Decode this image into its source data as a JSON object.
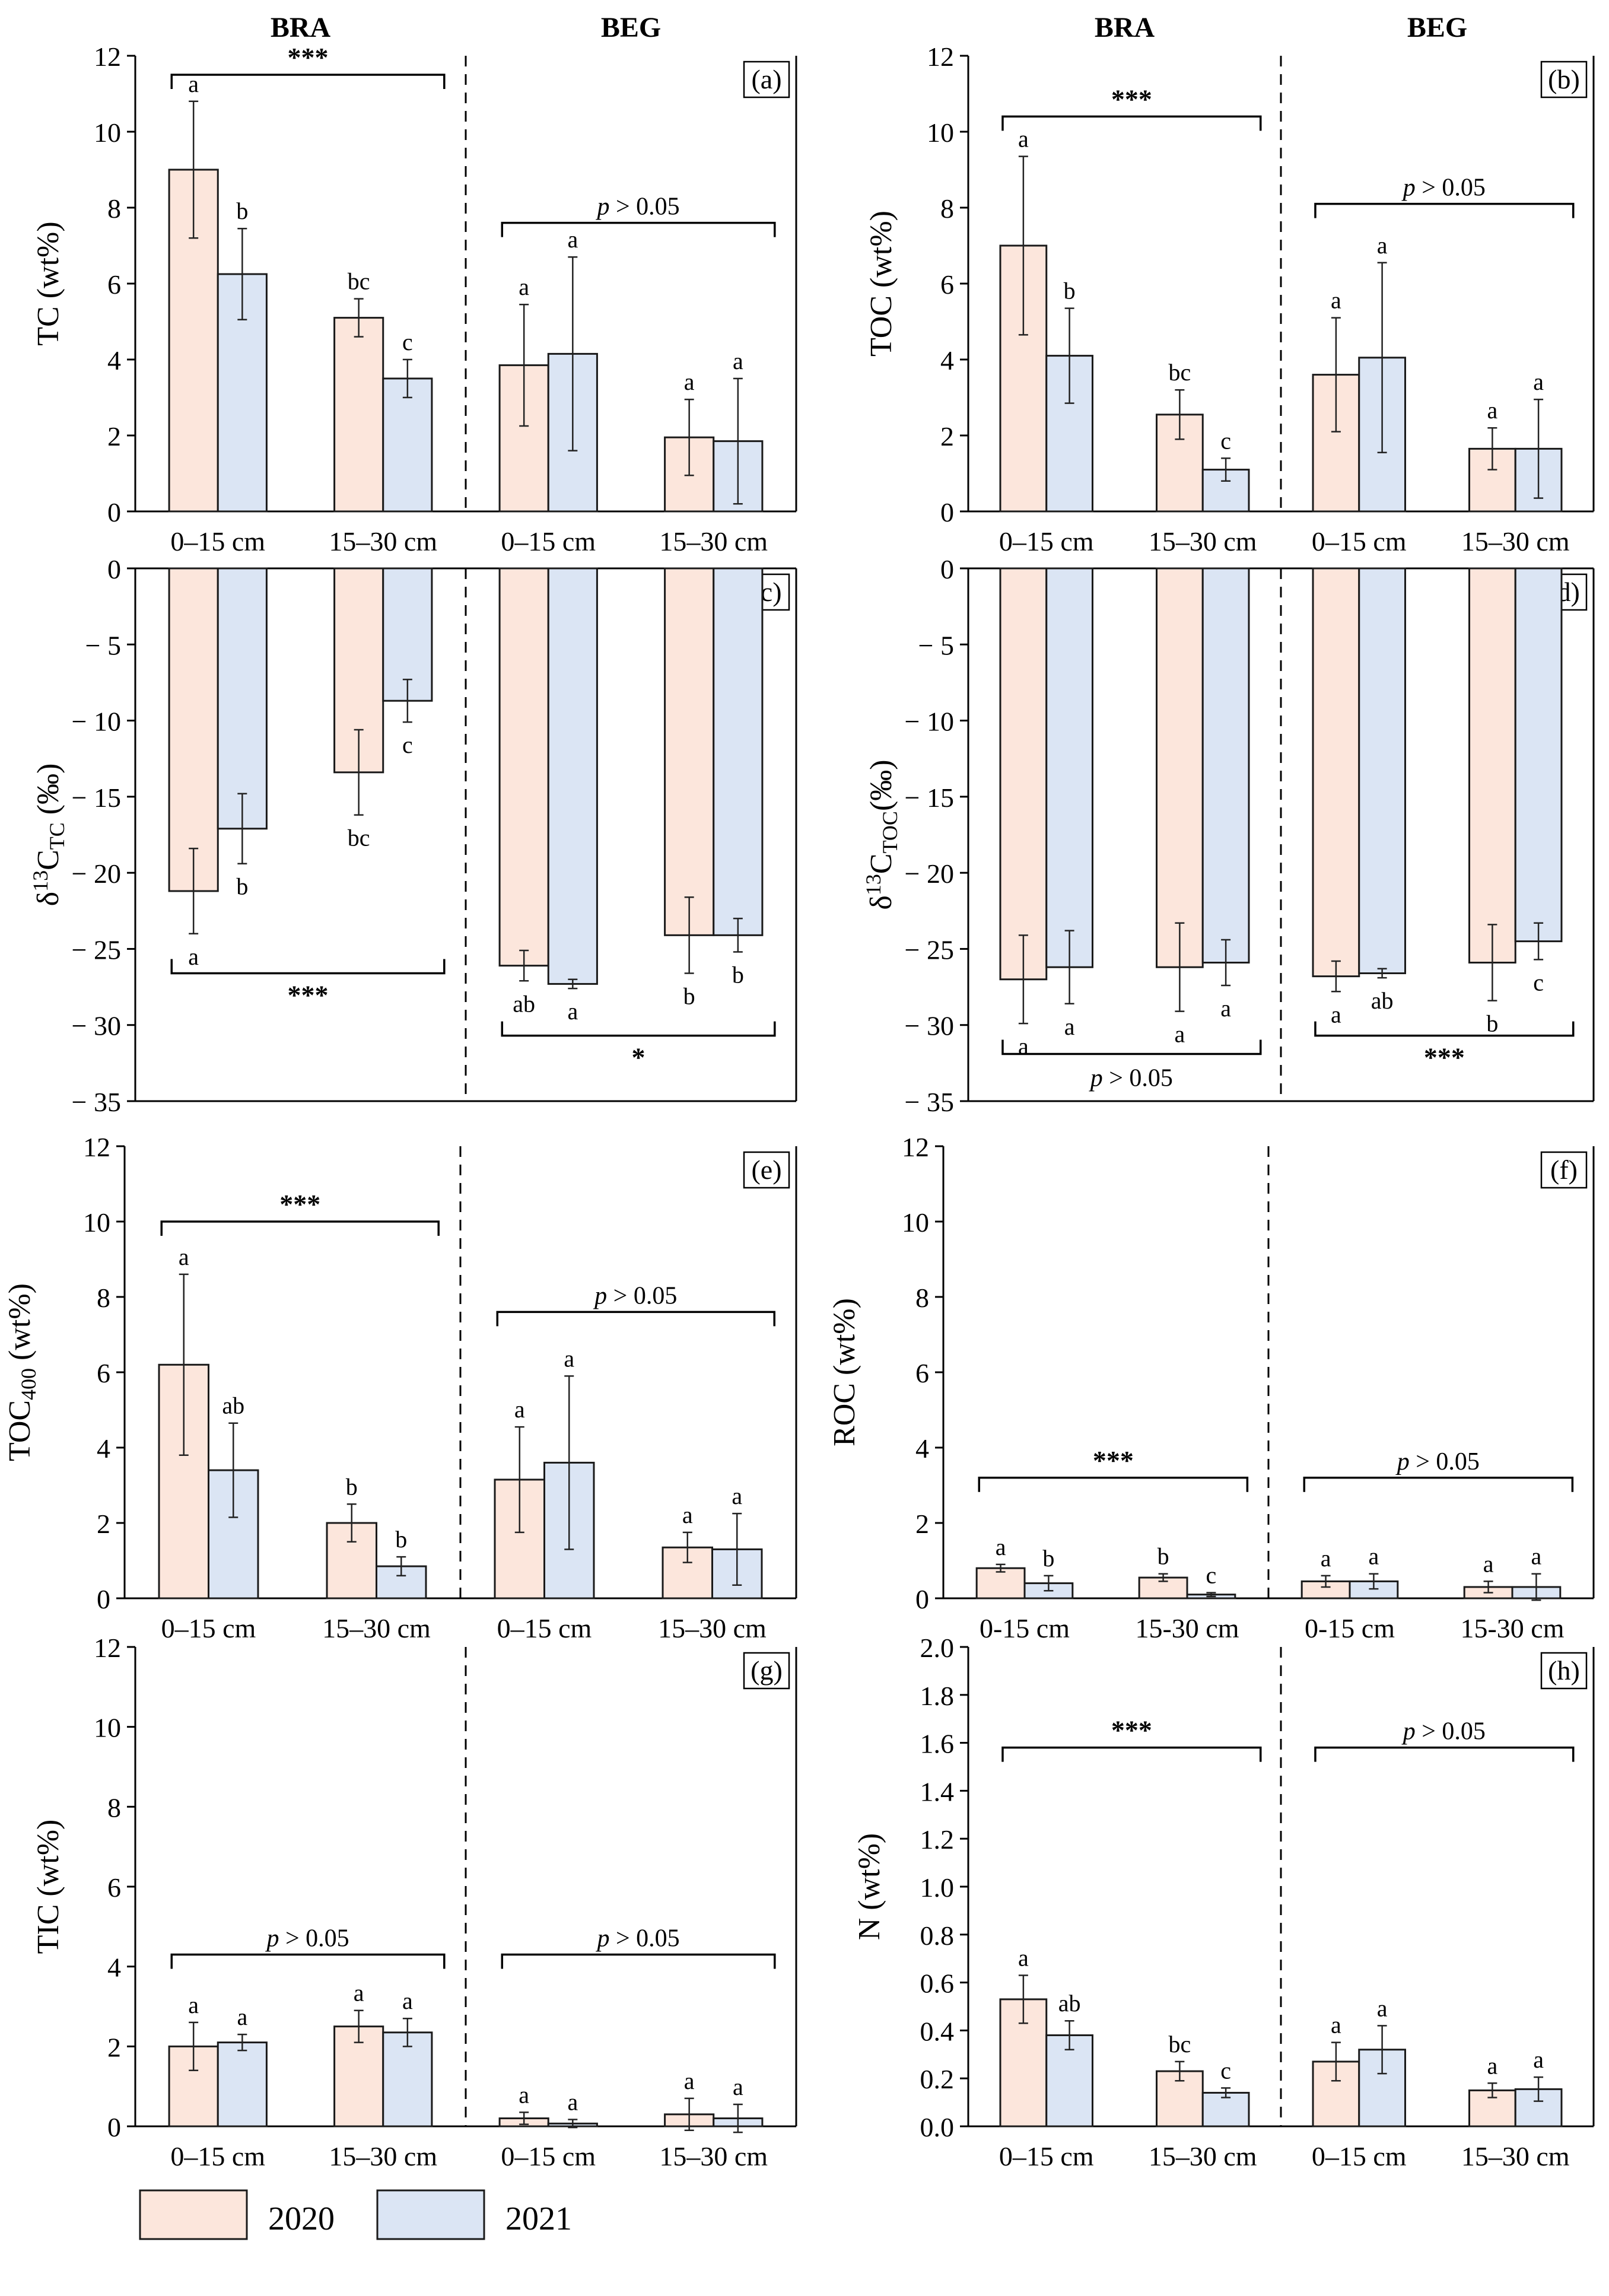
{
  "legend": {
    "entries": [
      {
        "label": "2020",
        "color": "#fce6dc"
      },
      {
        "label": "2021",
        "color": "#dbe5f4"
      }
    ]
  },
  "colors": {
    "y2020": "#fce6dc",
    "y2021": "#dbe5f4"
  },
  "chart_data": [
    {
      "id": "a",
      "type": "bar",
      "panel_label": "(a)",
      "ylabel": "TC (wt%)",
      "headers": [
        "BRA",
        "BEG"
      ],
      "ylim": [
        0,
        12
      ],
      "ytick_step": 2,
      "ytick_decimals": 0,
      "categories": [
        "0–15 cm",
        "15–30 cm",
        "0–15 cm",
        "15–30 cm"
      ],
      "series": [
        {
          "name": "2020",
          "values": [
            9.0,
            5.1,
            3.85,
            1.95
          ],
          "errors": [
            1.8,
            0.5,
            1.6,
            1.0
          ],
          "letters": [
            "a",
            "bc",
            "a",
            "a"
          ]
        },
        {
          "name": "2021",
          "values": [
            6.25,
            3.5,
            4.15,
            1.85
          ],
          "errors": [
            1.2,
            0.5,
            2.55,
            1.65
          ],
          "letters": [
            "b",
            "c",
            "a",
            "a"
          ]
        }
      ],
      "annotations": [
        {
          "text": "***",
          "group": "BRA",
          "value": 11.5
        },
        {
          "text": "p > 0.05",
          "group": "BEG",
          "value": 7.6
        }
      ]
    },
    {
      "id": "b",
      "type": "bar",
      "panel_label": "(b)",
      "ylabel": "TOC (wt%)",
      "headers": [
        "BRA",
        "BEG"
      ],
      "ylim": [
        0,
        12
      ],
      "ytick_step": 2,
      "ytick_decimals": 0,
      "categories": [
        "0–15 cm",
        "15–30 cm",
        "0–15 cm",
        "15–30 cm"
      ],
      "series": [
        {
          "name": "2020",
          "values": [
            7.0,
            2.55,
            3.6,
            1.65
          ],
          "errors": [
            2.35,
            0.65,
            1.5,
            0.55
          ],
          "letters": [
            "a",
            "bc",
            "a",
            "a"
          ]
        },
        {
          "name": "2021",
          "values": [
            4.1,
            1.1,
            4.05,
            1.65
          ],
          "errors": [
            1.25,
            0.3,
            2.5,
            1.3
          ],
          "letters": [
            "b",
            "c",
            "a",
            "a"
          ]
        }
      ],
      "annotations": [
        {
          "text": "***",
          "group": "BRA",
          "value": 10.4
        },
        {
          "text": "p > 0.05",
          "group": "BEG",
          "value": 8.1
        }
      ]
    },
    {
      "id": "c",
      "type": "bar",
      "panel_label": "(c)",
      "ylabel": "δ¹³C TC (‰)",
      "ylim": [
        -35,
        0
      ],
      "ytick_step": 5,
      "ytick_decimals": 0,
      "categories": [
        "0–15 cm",
        "15–30 cm",
        "0–15 cm",
        "15–30 cm"
      ],
      "series": [
        {
          "name": "2020",
          "values": [
            -21.2,
            -13.4,
            -26.1,
            -24.1
          ],
          "errors": [
            2.8,
            2.8,
            1.0,
            2.5
          ],
          "letters": [
            "a",
            "bc",
            "ab",
            "b"
          ]
        },
        {
          "name": "2021",
          "values": [
            -17.1,
            -8.7,
            -27.3,
            -24.1
          ],
          "errors": [
            2.3,
            1.4,
            0.3,
            1.1
          ],
          "letters": [
            "b",
            "c",
            "a",
            "b"
          ]
        }
      ],
      "annotations": [
        {
          "text": "***",
          "group": "BRA",
          "value": -26.6
        },
        {
          "text": "*",
          "group": "BEG",
          "value": -30.7
        }
      ]
    },
    {
      "id": "d",
      "type": "bar",
      "panel_label": "(d)",
      "ylabel": "δ¹³C TOC(‰)",
      "ylim": [
        -35,
        0
      ],
      "ytick_step": 5,
      "ytick_decimals": 0,
      "categories": [
        "0–15 cm",
        "15–30 cm",
        "0–15 cm",
        "15–30 cm"
      ],
      "series": [
        {
          "name": "2020",
          "values": [
            -27.0,
            -26.2,
            -26.8,
            -25.9
          ],
          "errors": [
            2.9,
            2.9,
            1.0,
            2.5
          ],
          "letters": [
            "a",
            "a",
            "a",
            "b"
          ]
        },
        {
          "name": "2021",
          "values": [
            -26.2,
            -25.9,
            -26.6,
            -24.5
          ],
          "errors": [
            2.4,
            1.5,
            0.3,
            1.2
          ],
          "letters": [
            "a",
            "a",
            "ab",
            "c"
          ]
        }
      ],
      "annotations": [
        {
          "text": "p > 0.05",
          "group": "BRA",
          "value": -31.9
        },
        {
          "text": "***",
          "group": "BEG",
          "value": -30.7
        }
      ]
    },
    {
      "id": "e",
      "type": "bar",
      "panel_label": "(e)",
      "ylabel": "TOC 400 (wt%)",
      "ylim": [
        0,
        12
      ],
      "ytick_step": 2,
      "ytick_decimals": 0,
      "categories": [
        "0–15 cm",
        "15–30 cm",
        "0–15 cm",
        "15–30 cm"
      ],
      "series": [
        {
          "name": "2020",
          "values": [
            6.2,
            2.0,
            3.15,
            1.35
          ],
          "errors": [
            2.4,
            0.5,
            1.4,
            0.4
          ],
          "letters": [
            "a",
            "b",
            "a",
            "a"
          ]
        },
        {
          "name": "2021",
          "values": [
            3.4,
            0.85,
            3.6,
            1.3
          ],
          "errors": [
            1.25,
            0.25,
            2.3,
            0.95
          ],
          "letters": [
            "ab",
            "b",
            "a",
            "a"
          ]
        }
      ],
      "annotations": [
        {
          "text": "***",
          "group": "BRA",
          "value": 10.0
        },
        {
          "text": "p > 0.05",
          "group": "BEG",
          "value": 7.6
        }
      ]
    },
    {
      "id": "f",
      "type": "bar",
      "panel_label": "(f)",
      "ylabel": "ROC (wt%)",
      "ylim": [
        0,
        12
      ],
      "ytick_step": 2,
      "ytick_decimals": 0,
      "categories": [
        "0-15 cm",
        "15-30 cm",
        "0-15 cm",
        "15-30 cm"
      ],
      "series": [
        {
          "name": "2020",
          "values": [
            0.8,
            0.55,
            0.45,
            0.3
          ],
          "errors": [
            0.1,
            0.1,
            0.15,
            0.15
          ],
          "letters": [
            "a",
            "b",
            "a",
            "a"
          ]
        },
        {
          "name": "2021",
          "values": [
            0.4,
            0.1,
            0.45,
            0.3
          ],
          "errors": [
            0.2,
            0.05,
            0.2,
            0.35
          ],
          "letters": [
            "b",
            "c",
            "a",
            "a"
          ]
        }
      ],
      "annotations": [
        {
          "text": "***",
          "group": "BRA",
          "value": 3.2
        },
        {
          "text": "p > 0.05",
          "group": "BEG",
          "value": 3.2
        }
      ]
    },
    {
      "id": "g",
      "type": "bar",
      "panel_label": "(g)",
      "ylabel": "TIC (wt%)",
      "ylim": [
        0,
        12
      ],
      "ytick_step": 2,
      "ytick_decimals": 0,
      "categories": [
        "0–15 cm",
        "15–30 cm",
        "0–15 cm",
        "15–30 cm"
      ],
      "series": [
        {
          "name": "2020",
          "values": [
            2.0,
            2.5,
            0.2,
            0.3
          ],
          "errors": [
            0.6,
            0.4,
            0.15,
            0.4
          ],
          "letters": [
            "a",
            "a",
            "a",
            "a"
          ]
        },
        {
          "name": "2021",
          "values": [
            2.1,
            2.35,
            0.07,
            0.2
          ],
          "errors": [
            0.2,
            0.35,
            0.1,
            0.35
          ],
          "letters": [
            "a",
            "a",
            "a",
            "a"
          ]
        }
      ],
      "annotations": [
        {
          "text": "p > 0.05",
          "group": "BRA",
          "value": 4.3
        },
        {
          "text": "p > 0.05",
          "group": "BEG",
          "value": 4.3
        }
      ]
    },
    {
      "id": "h",
      "type": "bar",
      "panel_label": "(h)",
      "ylabel": "N (wt%)",
      "ylim": [
        0,
        2.0
      ],
      "ytick_step": 0.2,
      "ytick_decimals": 1,
      "categories": [
        "0–15 cm",
        "15–30 cm",
        "0–15 cm",
        "15–30 cm"
      ],
      "series": [
        {
          "name": "2020",
          "values": [
            0.53,
            0.23,
            0.27,
            0.15
          ],
          "errors": [
            0.1,
            0.04,
            0.08,
            0.03
          ],
          "letters": [
            "a",
            "bc",
            "a",
            "a"
          ]
        },
        {
          "name": "2021",
          "values": [
            0.38,
            0.14,
            0.32,
            0.155
          ],
          "errors": [
            0.06,
            0.02,
            0.1,
            0.05
          ],
          "letters": [
            "ab",
            "c",
            "a",
            "a"
          ]
        }
      ],
      "annotations": [
        {
          "text": "***",
          "group": "BRA",
          "value": 1.58
        },
        {
          "text": "p > 0.05",
          "group": "BEG",
          "value": 1.58
        }
      ]
    }
  ]
}
